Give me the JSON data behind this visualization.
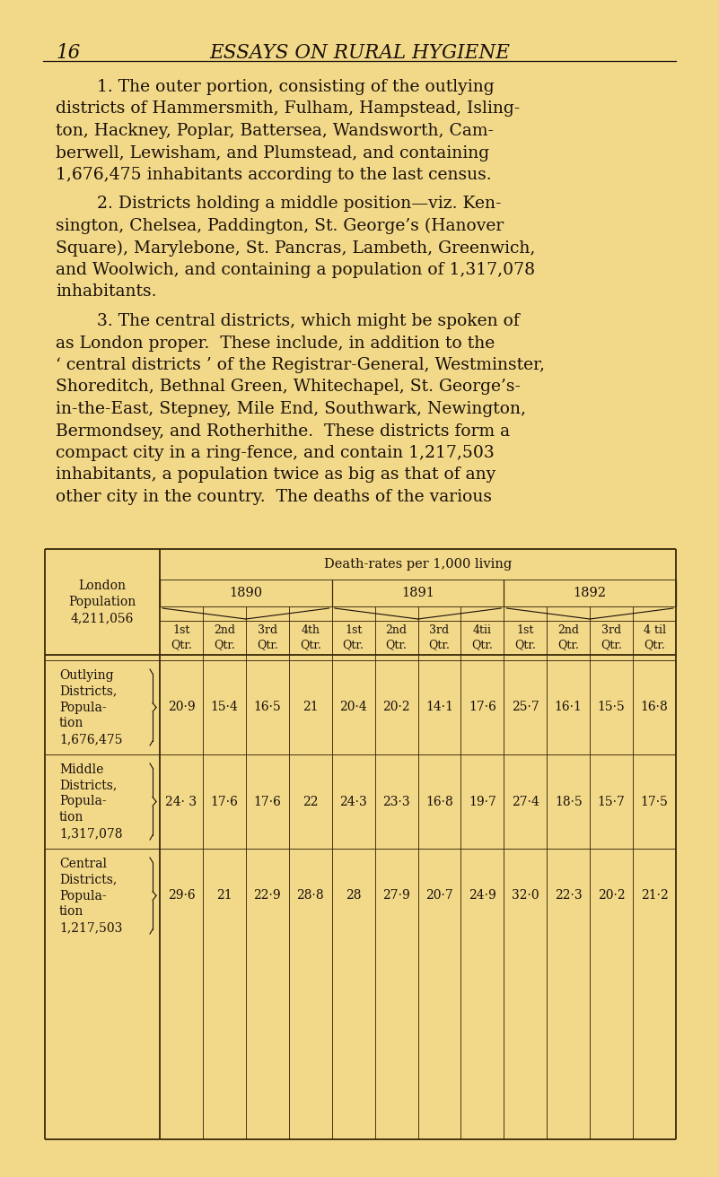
{
  "bg_color": "#f2d98a",
  "text_color": "#1a1008",
  "table_line_color": "#3a2808",
  "page_number": "16",
  "page_header": "ESSAYS ON RURAL HYGIENE",
  "p1_lines": [
    "1. The outer portion, consisting of the outlying",
    "districts of Hammersmith, Fulham, Hampstead, Isling-",
    "ton, Hackney, Poplar, Battersea, Wandsworth, Cam-",
    "berwell, Lewisham, and Plumstead, and containing",
    "1,676,475 inhabitants according to the last census."
  ],
  "p2_lines": [
    "2. Districts holding a middle position—viz. Ken-",
    "sington, Chelsea, Paddington, St. George’s (Hanover",
    "Square), Marylebone, St. Pancras, Lambeth, Greenwich,",
    "and Woolwich, and containing a population of 1,317,078",
    "inhabitants."
  ],
  "p3_lines": [
    "3. The central districts, which might be spoken of",
    "as London proper.  These include, in addition to the",
    "‘ central districts ’ of the Registrar-General, Westminster,",
    "Shoreditch, Bethnal Green, Whitechapel, St. George’s-",
    "in-the-East, Stepney, Mile End, Southwark, Newington,",
    "Bermondsey, and Rotherhithe.  These districts form a",
    "compact city in a ring-fence, and contain 1,217,503",
    "inhabitants, a population twice as big as that of any",
    "other city in the country.  The deaths of the various"
  ],
  "tbl_header": "Death-rates per 1,000 living",
  "tbl_col0": "London\nPopulation\n4,211,056",
  "year_headers": [
    "1890",
    "1891",
    "1892"
  ],
  "qtr_headers": [
    "1st\nQtr.",
    "2nd\nQtr.",
    "3rd\nQtr.",
    "4th\nQtr.",
    "1st\nQtr.",
    "2nd\nQtr.",
    "3rd\nQtr.",
    "4th\nQtr.",
    "1st\nQtr.",
    "2nd\nQtr.",
    "3rd\nQtr.",
    "4th\nQtr."
  ],
  "row_labels": [
    "Outlying\nDistricts,\nPopula-\ntion\n1,676,475",
    "Middle\nDistricts,\nPopula-\ntion\n1,317,078",
    "Central\nDistricts,\nPopula-\ntion\n1,217,503"
  ],
  "row_data": [
    [
      "20·9",
      "15·4",
      "16·5",
      "21",
      "20·4",
      "20·2",
      "14·1",
      "17·6",
      "25·7",
      "16·1",
      "15·5",
      "16·8"
    ],
    [
      "24· 3",
      "17·6",
      "17·6",
      "22",
      "24·3",
      "23·3",
      "16·8",
      "19·7",
      "27·4",
      "18·5",
      "15·7",
      "17·5"
    ],
    [
      "29·6",
      "21",
      "22·9",
      "28·8",
      "28",
      "27·9",
      "20·7",
      "24·9",
      "32·0",
      "22·3",
      "20·2",
      "21·2"
    ]
  ],
  "fs_body": 13.5,
  "fs_hdr": 15.5,
  "fs_tbl_main": 10.5,
  "fs_tbl_data": 10.0
}
